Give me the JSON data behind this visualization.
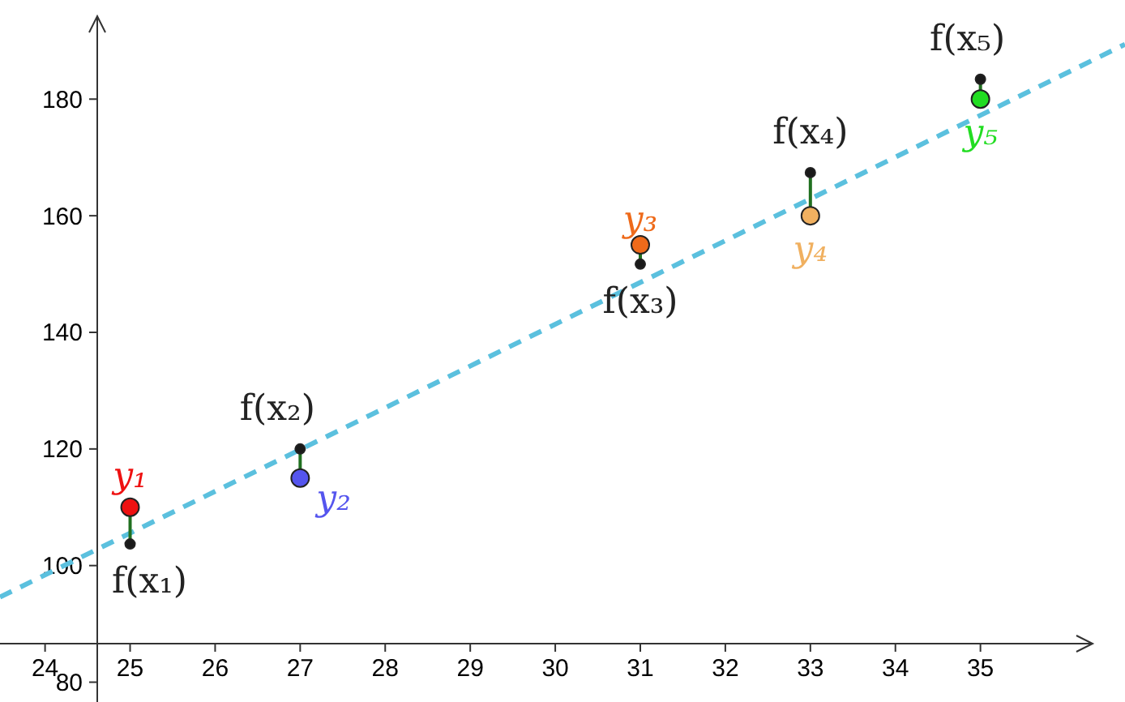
{
  "chart_data": {
    "type": "scatter",
    "xlim": [
      23.47,
      36.7
    ],
    "ylim": [
      76.6,
      197
    ],
    "xticks": [
      24,
      25,
      26,
      27,
      28,
      29,
      30,
      31,
      32,
      33,
      34,
      35
    ],
    "yticks": [
      80,
      100,
      120,
      140,
      160,
      180
    ],
    "grid": false,
    "marker": "circle",
    "series": [
      {
        "type": "line",
        "color": "#5bc0de",
        "line_style": "dashed",
        "marker": "none",
        "x": [
          23.47,
          36.7
        ],
        "values": [
          94.6,
          189.4
        ]
      },
      {
        "type": "line",
        "color": "#207020",
        "line_style": "solid",
        "marker": "none",
        "x": [
          25,
          25
        ],
        "values": [
          110,
          103.7
        ]
      },
      {
        "type": "line",
        "color": "#207020",
        "line_style": "solid",
        "marker": "none",
        "x": [
          27,
          27
        ],
        "values": [
          115,
          120
        ]
      },
      {
        "type": "line",
        "color": "#207020",
        "line_style": "solid",
        "marker": "none",
        "x": [
          31,
          31
        ],
        "values": [
          155,
          151.7
        ]
      },
      {
        "type": "line",
        "color": "#207020",
        "line_style": "solid",
        "marker": "none",
        "x": [
          33,
          33
        ],
        "values": [
          160,
          167.4
        ]
      },
      {
        "type": "line",
        "color": "#207020",
        "line_style": "solid",
        "marker": "none",
        "x": [
          35,
          35
        ],
        "values": [
          180,
          183.4
        ]
      },
      {
        "color": "#1a1a1a",
        "x": [
          25,
          27,
          31,
          33,
          35
        ],
        "values": [
          103.7,
          120,
          151.7,
          167.4,
          183.4
        ]
      },
      {
        "name": "y₁",
        "color": "#ee1111",
        "x": [
          25
        ],
        "values": [
          110
        ]
      },
      {
        "name": "y₂",
        "color": "#5555ee",
        "x": [
          27
        ],
        "values": [
          115
        ]
      },
      {
        "name": "y₃",
        "color": "#ee6a1a",
        "x": [
          31
        ],
        "values": [
          155
        ]
      },
      {
        "name": "y₄",
        "color": "#f0b060",
        "x": [
          33
        ],
        "values": [
          160
        ]
      },
      {
        "name": "y₅",
        "color": "#22dd22",
        "x": [
          35
        ],
        "values": [
          180
        ]
      }
    ],
    "annotations": [
      {
        "text": "f(x₁)",
        "x": 25,
        "y": 103.7
      },
      {
        "text": "f(x₂)",
        "x": 27,
        "y": 120
      },
      {
        "text": "f(x₃)",
        "x": 31,
        "y": 151.7
      },
      {
        "text": "f(x₄)",
        "x": 33,
        "y": 167.4
      },
      {
        "text": "f(x₅)",
        "x": 35,
        "y": 183.4
      }
    ]
  }
}
